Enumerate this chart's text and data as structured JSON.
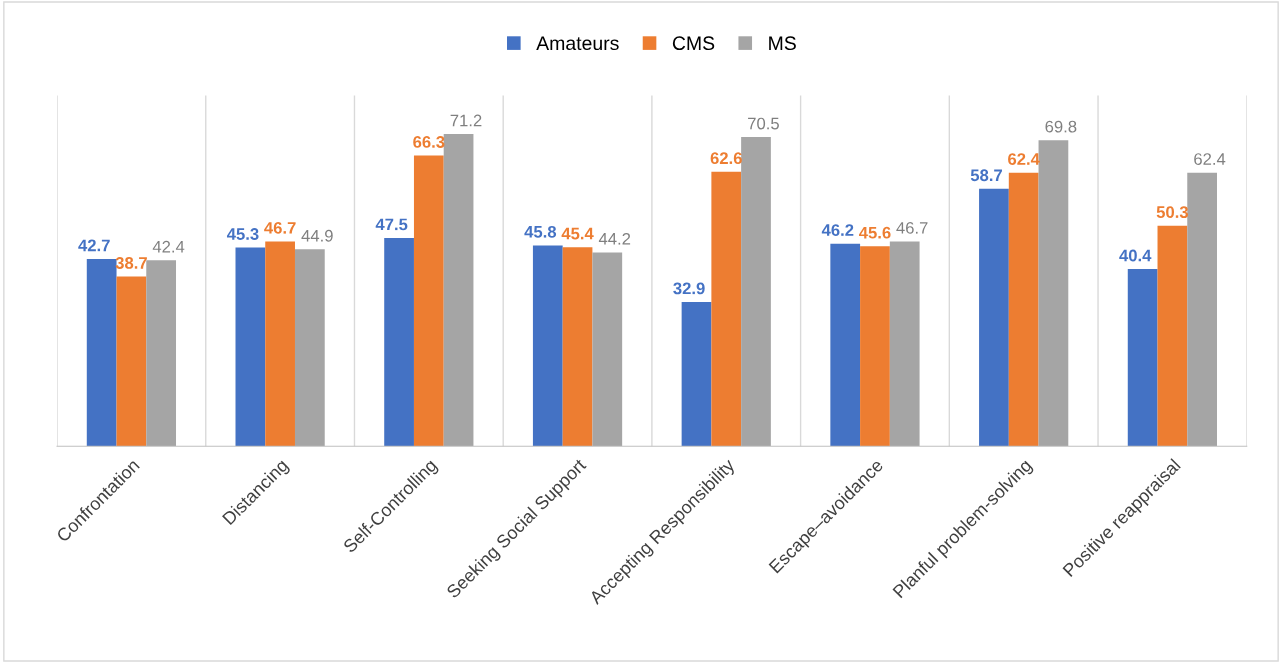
{
  "chart_data": {
    "type": "bar",
    "categories": [
      "Confrontation",
      "Distancing",
      "Self-Controlling",
      "Seeking Social Support",
      "Accepting Responsibility",
      "Escape–avoidance",
      "Planful problem-solving",
      "Positive reappraisal"
    ],
    "series": [
      {
        "name": "Amateurs",
        "color": "#4472c4",
        "values": [
          42.7,
          45.3,
          47.5,
          45.8,
          32.9,
          46.2,
          58.7,
          40.4
        ]
      },
      {
        "name": "CMS",
        "color": "#ed7d31",
        "values": [
          38.7,
          46.7,
          66.3,
          45.4,
          62.6,
          45.6,
          62.4,
          50.3
        ]
      },
      {
        "name": "MS",
        "color": "#a5a5a5",
        "values": [
          42.4,
          44.9,
          71.2,
          44.2,
          70.5,
          46.7,
          69.8,
          62.4
        ]
      }
    ],
    "ylim": [
      0,
      80
    ],
    "tick_labels": "x",
    "grid": "x",
    "legend": "top",
    "data_labels": true
  }
}
